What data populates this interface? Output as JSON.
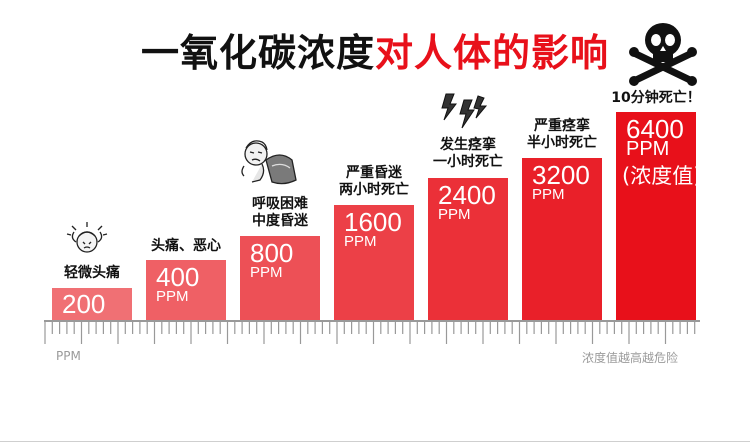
{
  "title": {
    "part1": "一氧化碳浓度",
    "part2": "对人体的影响"
  },
  "colors": {
    "title_black": "#111111",
    "title_red": "#e8101a",
    "bar_light": "#f07074",
    "bar_dark": "#e8101a",
    "ruler": "#999999"
  },
  "icons": [
    "headache-person-icon",
    "sick-person-icon",
    "lightning-spasm-icon",
    "skull-crossbones-icon"
  ],
  "chart_data": {
    "type": "bar",
    "unit": "PPM",
    "categories": [
      "轻微头痛",
      "头痛、恶心",
      "呼吸困难中度昏迷",
      "严重昏迷两小时死亡",
      "发生痉挛一小时死亡",
      "严重痉挛半小时死亡",
      "10分钟死亡！"
    ],
    "values": [
      200,
      400,
      800,
      1600,
      2400,
      3200,
      6400
    ],
    "bars": [
      {
        "value_label": "200",
        "unit_label": "",
        "note": "",
        "effect_lines": [
          "轻微头痛"
        ]
      },
      {
        "value_label": "400",
        "unit_label": "PPM",
        "note": "",
        "effect_lines": [
          "头痛、恶心"
        ]
      },
      {
        "value_label": "800",
        "unit_label": "PPM",
        "note": "",
        "effect_lines": [
          "呼吸困难",
          "中度昏迷"
        ]
      },
      {
        "value_label": "1600",
        "unit_label": "PPM",
        "note": "",
        "effect_lines": [
          "严重昏迷",
          "两小时死亡"
        ]
      },
      {
        "value_label": "2400",
        "unit_label": "PPM",
        "note": "",
        "effect_lines": [
          "发生痉挛",
          "一小时死亡"
        ]
      },
      {
        "value_label": "3200",
        "unit_label": "PPM",
        "note": "",
        "effect_lines": [
          "严重痉挛",
          "半小时死亡"
        ]
      },
      {
        "value_label": "6400",
        "unit_label": "PPM",
        "note": "(浓度值)",
        "effect_lines": [
          "10分钟死亡！"
        ]
      }
    ],
    "axis_left_label": "PPM",
    "axis_right_label": "浓度值越高越危险"
  }
}
